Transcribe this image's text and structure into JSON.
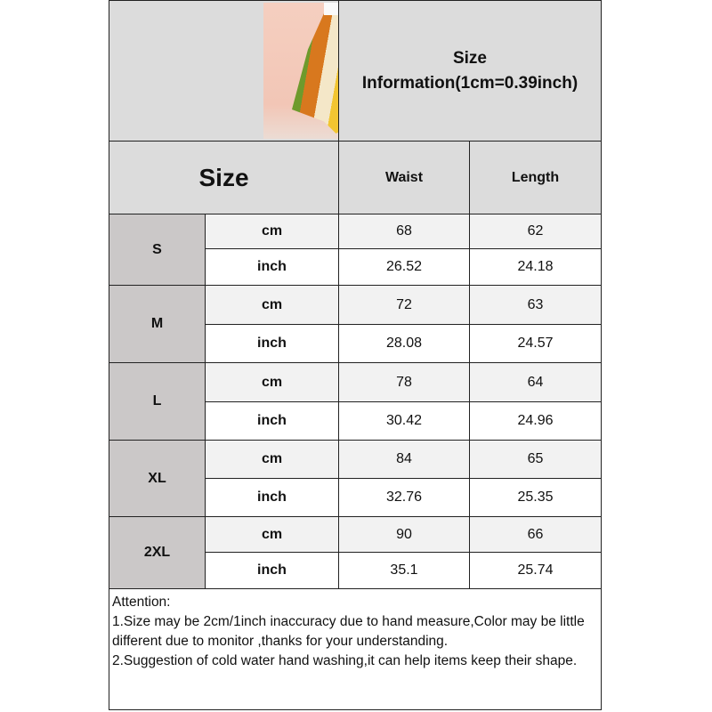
{
  "title": "Size Information(1cm=0.39inch)",
  "header": {
    "size": "Size",
    "waist": "Waist",
    "length": "Length"
  },
  "rows": [
    {
      "size": "S",
      "cm": {
        "unit": "cm",
        "waist": "68",
        "length": "62"
      },
      "inch": {
        "unit": "inch",
        "waist": "26.52",
        "length": "24.18"
      }
    },
    {
      "size": "M",
      "cm": {
        "unit": "cm",
        "waist": "72",
        "length": "63"
      },
      "inch": {
        "unit": "inch",
        "waist": "28.08",
        "length": "24.57"
      }
    },
    {
      "size": "L",
      "cm": {
        "unit": "cm",
        "waist": "78",
        "length": "64"
      },
      "inch": {
        "unit": "inch",
        "waist": "30.42",
        "length": "24.96"
      }
    },
    {
      "size": "XL",
      "cm": {
        "unit": "cm",
        "waist": "84",
        "length": "65"
      },
      "inch": {
        "unit": "inch",
        "waist": "32.76",
        "length": "25.35"
      }
    },
    {
      "size": "2XL",
      "cm": {
        "unit": "cm",
        "waist": "90",
        "length": "66"
      },
      "inch": {
        "unit": "inch",
        "waist": "35.1",
        "length": "25.74"
      }
    }
  ],
  "attention": {
    "heading": "Attention:",
    "line1": "1.Size may be 2cm/1inch inaccuracy due to hand measure,Color may be little different due to monitor ,thanks for your understanding.",
    "line2": "2.Suggestion of cold water hand washing,it can help items keep their shape."
  }
}
